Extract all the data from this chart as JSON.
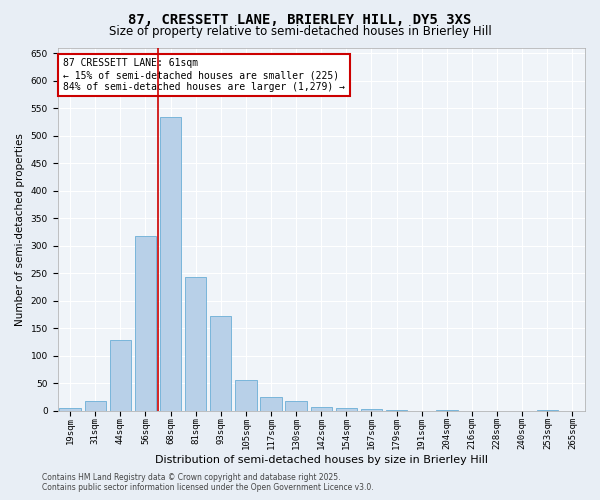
{
  "title1": "87, CRESSETT LANE, BRIERLEY HILL, DY5 3XS",
  "title2": "Size of property relative to semi-detached houses in Brierley Hill",
  "xlabel": "Distribution of semi-detached houses by size in Brierley Hill",
  "ylabel": "Number of semi-detached properties",
  "categories": [
    "19sqm",
    "31sqm",
    "44sqm",
    "56sqm",
    "68sqm",
    "81sqm",
    "93sqm",
    "105sqm",
    "117sqm",
    "130sqm",
    "142sqm",
    "154sqm",
    "167sqm",
    "179sqm",
    "191sqm",
    "204sqm",
    "216sqm",
    "228sqm",
    "240sqm",
    "253sqm",
    "265sqm"
  ],
  "values": [
    5,
    18,
    128,
    318,
    533,
    243,
    172,
    56,
    26,
    18,
    8,
    5,
    3,
    1,
    0,
    1,
    0,
    0,
    0,
    1,
    0
  ],
  "bar_color": "#b8d0e8",
  "bar_edge_color": "#6aaed6",
  "vline_color": "#cc0000",
  "annotation_title": "87 CRESSETT LANE: 61sqm",
  "annotation_line1": "← 15% of semi-detached houses are smaller (225)",
  "annotation_line2": "84% of semi-detached houses are larger (1,279) →",
  "annotation_box_color": "#ffffff",
  "annotation_box_edge": "#cc0000",
  "ylim": [
    0,
    660
  ],
  "yticks": [
    0,
    50,
    100,
    150,
    200,
    250,
    300,
    350,
    400,
    450,
    500,
    550,
    600,
    650
  ],
  "footer1": "Contains HM Land Registry data © Crown copyright and database right 2025.",
  "footer2": "Contains public sector information licensed under the Open Government Licence v3.0.",
  "bg_color": "#e8eef5",
  "plot_bg_color": "#f0f4f9",
  "title1_fontsize": 10,
  "title2_fontsize": 8.5,
  "ylabel_fontsize": 7.5,
  "xlabel_fontsize": 8,
  "tick_fontsize": 6.5,
  "annot_fontsize": 7,
  "footer_fontsize": 5.5
}
